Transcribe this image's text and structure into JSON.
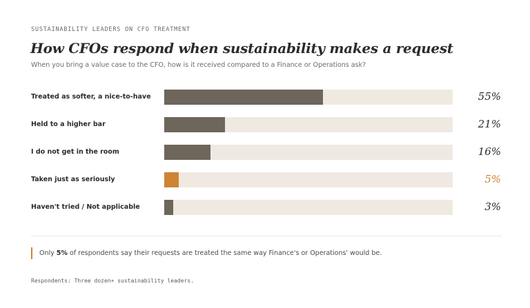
{
  "header": {
    "eyebrow": "SUSTAINABILITY LEADERS ON CFO TREATMENT",
    "title": "How CFOs respond when sustainability makes a request",
    "subtitle": "When you bring a value case to the CFO, how is it received compared to a Finance or Operations ask?"
  },
  "colors": {
    "bar": "#6e655b",
    "accent": "#cf8334",
    "track": "#efe9e1"
  },
  "chart_data": {
    "type": "bar",
    "orientation": "horizontal",
    "categories": [
      "Treated as softer, a nice-to-have",
      "Held to a higher bar",
      "I do not get in the room",
      "Taken just as seriously",
      "Haven't tried / Not applicable"
    ],
    "values": [
      55,
      21,
      16,
      5,
      3
    ],
    "value_labels": [
      "55%",
      "21%",
      "16%",
      "5%",
      "3%"
    ],
    "highlight_index": 3,
    "xlim": [
      0,
      100
    ],
    "grid": false,
    "legend": "none"
  },
  "callout": {
    "prefix": "Only ",
    "highlight": "5%",
    "suffix": " of respondents say their requests are treated the same way Finance's or Operations' would be."
  },
  "footnote": "Respondents: Three dozen+ sustainability leaders."
}
